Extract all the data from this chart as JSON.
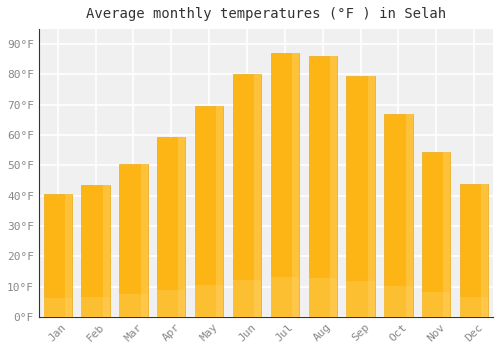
{
  "months": [
    "Jan",
    "Feb",
    "Mar",
    "Apr",
    "May",
    "Jun",
    "Jul",
    "Aug",
    "Sep",
    "Oct",
    "Nov",
    "Dec"
  ],
  "values": [
    40.5,
    43.5,
    50.5,
    59.5,
    69.5,
    80.0,
    87.0,
    86.0,
    79.5,
    67.0,
    54.5,
    44.0
  ],
  "bar_color": "#FDB515",
  "bar_edge_color": "#E8A000",
  "background_color": "#FFFFFF",
  "plot_bg_color": "#F0F0F0",
  "grid_color": "#FFFFFF",
  "title": "Average monthly temperatures (°F ) in Selah",
  "title_fontsize": 10,
  "ylabel_ticks": [
    0,
    10,
    20,
    30,
    40,
    50,
    60,
    70,
    80,
    90
  ],
  "ylim": [
    0,
    95
  ],
  "tick_label_color": "#888888",
  "tick_label_fontsize": 8,
  "font_family": "monospace"
}
